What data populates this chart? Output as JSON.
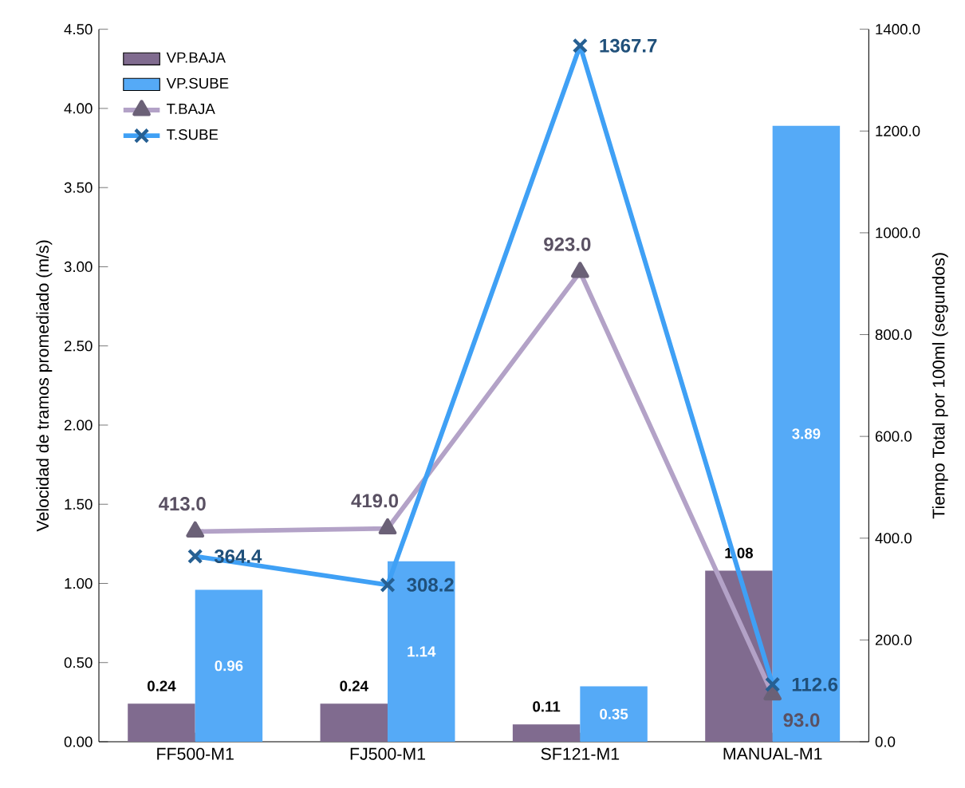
{
  "chart_data": {
    "type": "bar",
    "categories": [
      "FF500-M1",
      "FJ500-M1",
      "SF121-M1",
      "MANUAL-M1"
    ],
    "ylabel": "Velocidad de tramos promediado (m/s)",
    "y2label": "Tiempo Total por 100ml (segundos)",
    "ylim": [
      0,
      4.5
    ],
    "yticks": [
      {
        "value": 0,
        "label": "0.00"
      },
      {
        "value": 0.5,
        "label": "0.50"
      },
      {
        "value": 1,
        "label": "1.00"
      },
      {
        "value": 1.5,
        "label": "1.50"
      },
      {
        "value": 2,
        "label": "2.00"
      },
      {
        "value": 2.5,
        "label": "2.50"
      },
      {
        "value": 3,
        "label": "3.00"
      },
      {
        "value": 3.5,
        "label": "3.50"
      },
      {
        "value": 4,
        "label": "4.00"
      },
      {
        "value": 4.5,
        "label": "4.50"
      }
    ],
    "y2lim": [
      0,
      1400
    ],
    "y2ticks": [
      {
        "value": 0,
        "label": "0.0"
      },
      {
        "value": 200,
        "label": "200.0"
      },
      {
        "value": 400,
        "label": "400.0"
      },
      {
        "value": 600,
        "label": "600.0"
      },
      {
        "value": 800,
        "label": "800.0"
      },
      {
        "value": 1000,
        "label": "1000.0"
      },
      {
        "value": 1200,
        "label": "1200.0"
      },
      {
        "value": 1400,
        "label": "1400.0"
      }
    ],
    "legend": "top left",
    "series": [
      {
        "name": "VP.BAJA",
        "color": "#806b8f",
        "values": [
          0.24,
          0.24,
          0.11,
          1.08
        ],
        "value_labels": [
          "0.24",
          "0.24",
          "0.11",
          "1.08"
        ]
      },
      {
        "name": "VP.SUBE",
        "color": "#55aaf7",
        "values": [
          0.96,
          1.14,
          0.35,
          3.89
        ],
        "value_labels": [
          "0.96",
          "1.14",
          "0.35",
          "3.89"
        ]
      },
      {
        "name": "T.BAJA",
        "type": "line",
        "axis": "y2",
        "marker": "triangle",
        "color": "#b3a2c7",
        "values": [
          413.0,
          419.0,
          923.0,
          93.0
        ],
        "value_labels": [
          "413.0",
          "419.0",
          "923.0",
          "93.0"
        ]
      },
      {
        "name": "T.SUBE",
        "type": "line",
        "axis": "y2",
        "marker": "cross",
        "color": "#3fa0f5",
        "values": [
          364.4,
          308.2,
          1367.7,
          112.6
        ],
        "value_labels": [
          "364.4",
          "308.2",
          "1367.7",
          "112.6"
        ]
      }
    ]
  }
}
